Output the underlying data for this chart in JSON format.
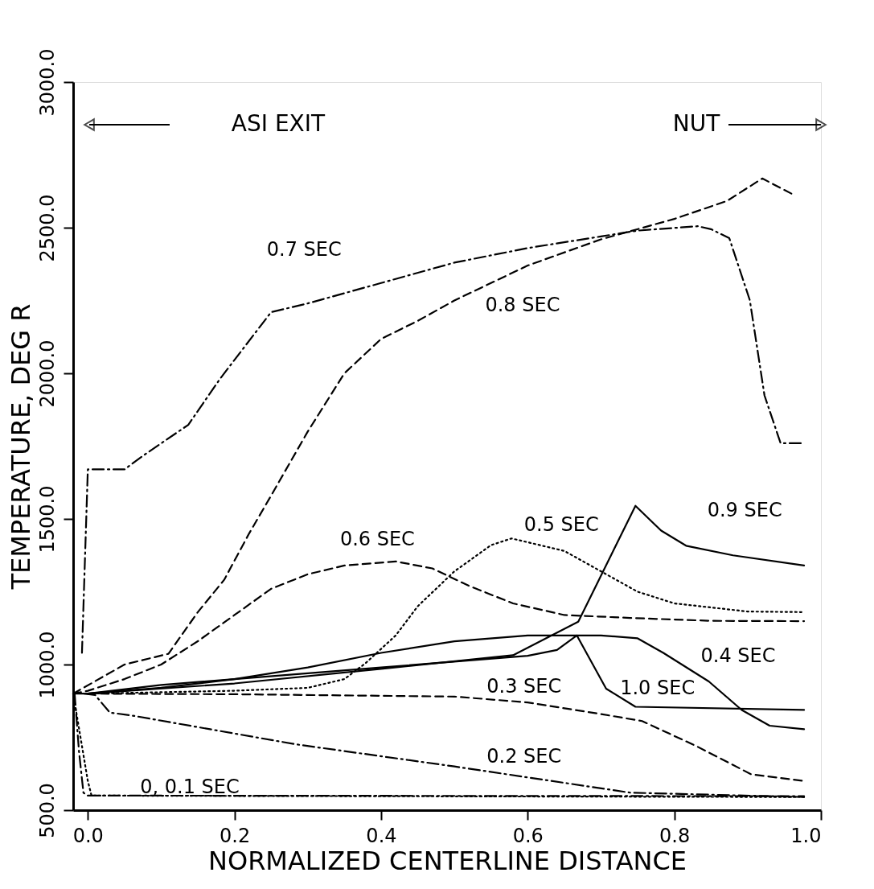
{
  "chart_data": {
    "type": "line",
    "xlabel": "NORMALIZED CENTERLINE DISTANCE",
    "ylabel": "TEMPERATURE, DEG R",
    "xlim": [
      -0.02,
      1.0
    ],
    "ylim": [
      500,
      3000
    ],
    "xticks": [
      {
        "value": 0,
        "label": "0.0"
      },
      {
        "value": 0.2,
        "label": "0.2"
      },
      {
        "value": 0.4,
        "label": "0.4"
      },
      {
        "value": 0.6,
        "label": "0.6"
      },
      {
        "value": 0.8,
        "label": "0.8"
      },
      {
        "value": 1,
        "label": "1.0"
      }
    ],
    "yticks": [
      {
        "value": 500,
        "label": "500.0"
      },
      {
        "value": 1000,
        "label": "1000.0"
      },
      {
        "value": 1500,
        "label": "1500.0"
      },
      {
        "value": 2000,
        "label": "2000.0"
      },
      {
        "value": 2500,
        "label": "2500.0"
      },
      {
        "value": 3000,
        "label": "3000.0"
      }
    ],
    "grid": false,
    "marker": "none",
    "series": [
      {
        "name": "0, 0.1 SEC",
        "color": "#000000",
        "line_style": "dashdot",
        "x": [
          -0.018,
          -0.012,
          -0.006,
          0.0,
          0.977
        ],
        "values": [
          900,
          700,
          560,
          550,
          548
        ]
      },
      {
        "color": "#000000",
        "line_style": "dotted",
        "x": [
          -0.02,
          0.0,
          0.005,
          0.977
        ],
        "values": [
          900,
          600,
          550,
          545
        ]
      },
      {
        "name": "0.2 SEC",
        "color": "#000000",
        "line_style": "dashdot",
        "x": [
          -0.005,
          0.01,
          0.03,
          0.06,
          0.284,
          0.5,
          0.74,
          0.977
        ],
        "values": [
          900,
          895,
          835,
          825,
          726,
          650,
          560,
          545
        ]
      },
      {
        "name": "0.3 SEC",
        "color": "#000000",
        "line_style": "dashed",
        "x": [
          0.0,
          0.2,
          0.5,
          0.6,
          0.7,
          0.756,
          0.83,
          0.905,
          0.977
        ],
        "values": [
          900,
          898,
          890,
          870,
          830,
          806,
          720,
          623,
          600
        ]
      },
      {
        "name": "0.4 SEC",
        "color": "#000000",
        "line_style": "solid",
        "x": [
          -0.02,
          0.0,
          0.1,
          0.2,
          0.3,
          0.4,
          0.5,
          0.6,
          0.7,
          0.75,
          0.785,
          0.847,
          0.892,
          0.93,
          0.977
        ],
        "values": [
          900,
          900,
          920,
          950,
          990,
          1040,
          1080,
          1100,
          1100,
          1090,
          1040,
          942,
          844,
          790,
          778
        ]
      },
      {
        "name": "0.5 SEC",
        "color": "#000000",
        "line_style": "dotted",
        "x": [
          0.0,
          0.1,
          0.2,
          0.3,
          0.35,
          0.379,
          0.42,
          0.45,
          0.5,
          0.55,
          0.578,
          0.65,
          0.7,
          0.75,
          0.8,
          0.9,
          0.977
        ],
        "values": [
          900,
          905,
          910,
          920,
          950,
          1005,
          1100,
          1200,
          1320,
          1410,
          1433,
          1390,
          1320,
          1250,
          1210,
          1182,
          1180
        ]
      },
      {
        "name": "0.6 SEC",
        "color": "#000000",
        "line_style": "dashed",
        "x": [
          -0.02,
          0.0,
          0.05,
          0.1,
          0.15,
          0.2,
          0.25,
          0.3,
          0.35,
          0.42,
          0.47,
          0.52,
          0.58,
          0.65,
          0.74,
          0.85,
          0.977
        ],
        "values": [
          900,
          910,
          950,
          1000,
          1080,
          1170,
          1260,
          1310,
          1340,
          1354,
          1330,
          1270,
          1210,
          1170,
          1160,
          1150,
          1149
        ]
      },
      {
        "name": "0.7 SEC",
        "color": "#000000",
        "line_style": "dashdot",
        "x": [
          -0.008,
          0.0,
          0.05,
          0.077,
          0.137,
          0.18,
          0.25,
          0.3,
          0.4,
          0.5,
          0.6,
          0.7,
          0.75,
          0.832,
          0.85,
          0.875,
          0.903,
          0.923,
          0.945,
          0.978
        ],
        "values": [
          1040,
          1670,
          1670,
          1720,
          1823,
          1980,
          2210,
          2240,
          2310,
          2380,
          2430,
          2470,
          2490,
          2505,
          2495,
          2464,
          2251,
          1924,
          1760,
          1760
        ]
      },
      {
        "name": "0.8 SEC",
        "color": "#000000",
        "line_style": "dashed",
        "x": [
          -0.02,
          0.05,
          0.11,
          0.15,
          0.186,
          0.22,
          0.25,
          0.3,
          0.35,
          0.4,
          0.45,
          0.5,
          0.6,
          0.7,
          0.8,
          0.872,
          0.92,
          0.962
        ],
        "values": [
          900,
          1000,
          1037,
          1180,
          1291,
          1450,
          1580,
          1800,
          2000,
          2118,
          2180,
          2250,
          2370,
          2460,
          2530,
          2592,
          2669,
          2614
        ]
      },
      {
        "name": "0.9 SEC",
        "color": "#000000",
        "line_style": "solid",
        "x": [
          0.0,
          0.2,
          0.4,
          0.58,
          0.669,
          0.747,
          0.782,
          0.816,
          0.88,
          0.977
        ],
        "values": [
          900,
          935,
          985,
          1032,
          1147,
          1545,
          1460,
          1408,
          1375,
          1340
        ]
      },
      {
        "name": "1.0 SEC",
        "color": "#000000",
        "line_style": "solid",
        "x": [
          0.0,
          0.1,
          0.2,
          0.4,
          0.6,
          0.64,
          0.667,
          0.707,
          0.747,
          0.977
        ],
        "values": [
          900,
          930,
          950,
          990,
          1030,
          1050,
          1100,
          917,
          855,
          844
        ]
      }
    ],
    "annotations": [
      "ASI EXIT",
      "NUT"
    ]
  }
}
